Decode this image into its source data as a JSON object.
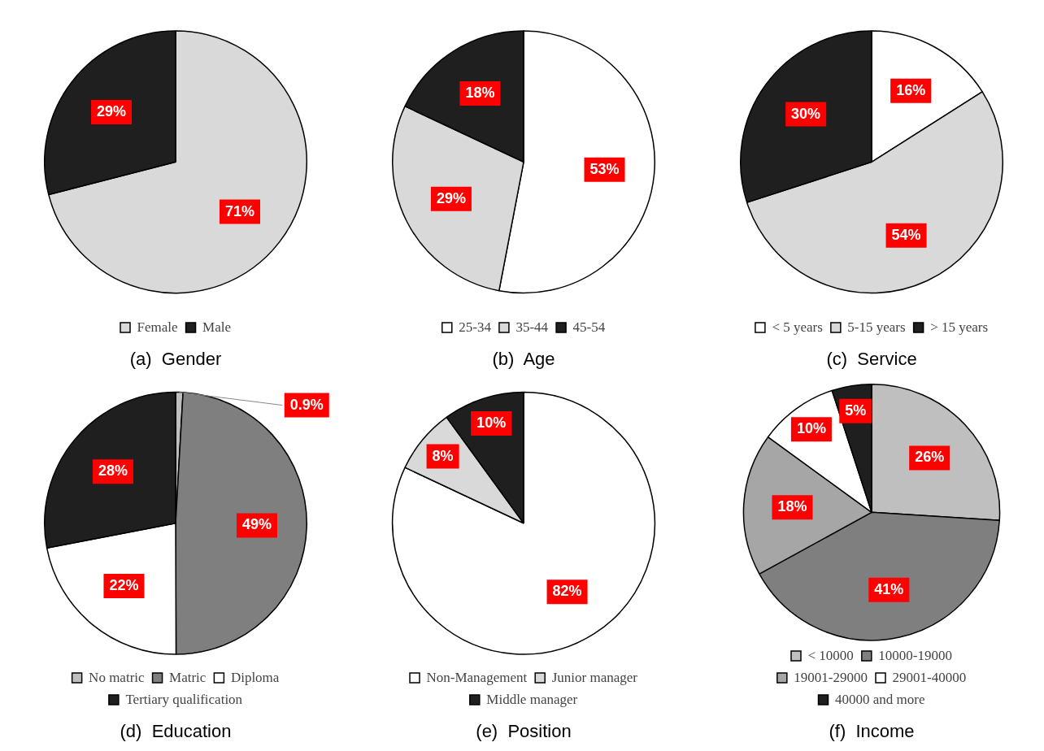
{
  "chart_data": [
    {
      "type": "pie",
      "title": "(a)  Gender",
      "categories": [
        "Female",
        "Male"
      ],
      "values": [
        71,
        29
      ],
      "value_labels": [
        "71%",
        "29%"
      ],
      "colors": [
        "#d9d9d9",
        "#1f1f1f"
      ],
      "legend": "bottom"
    },
    {
      "type": "pie",
      "title": "(b)  Age",
      "categories": [
        "25-34",
        "35-44",
        "45-54"
      ],
      "values": [
        53,
        29,
        18
      ],
      "value_labels": [
        "53%",
        "29%",
        "18%"
      ],
      "colors": [
        "#ffffff",
        "#d9d9d9",
        "#1f1f1f"
      ],
      "legend": "bottom"
    },
    {
      "type": "pie",
      "title": "(c)  Service",
      "categories": [
        "< 5 years",
        "5-15 years",
        "> 15 years"
      ],
      "values": [
        16,
        54,
        30
      ],
      "value_labels": [
        "16%",
        "54%",
        "30%"
      ],
      "colors": [
        "#ffffff",
        "#d9d9d9",
        "#1f1f1f"
      ],
      "legend": "bottom"
    },
    {
      "type": "pie",
      "title": "(d)  Education",
      "categories": [
        "No matric",
        "Matric",
        "Diploma",
        "Tertiary qualification"
      ],
      "values": [
        0.9,
        49,
        22,
        28
      ],
      "value_labels": [
        "0.9%",
        "49%",
        "22%",
        "28%"
      ],
      "colors": [
        "#bfbfbf",
        "#7f7f7f",
        "#ffffff",
        "#1f1f1f"
      ],
      "legend": "bottom"
    },
    {
      "type": "pie",
      "title": "(e)  Position",
      "categories": [
        "Non-Management",
        "Junior manager",
        "Middle manager"
      ],
      "values": [
        82,
        8,
        10
      ],
      "value_labels": [
        "82%",
        "8%",
        "10%"
      ],
      "colors": [
        "#ffffff",
        "#d9d9d9",
        "#1f1f1f"
      ],
      "legend": "bottom"
    },
    {
      "type": "pie",
      "title": "(f)  Income",
      "categories": [
        "< 10000",
        "10000-19000",
        "19001-29000",
        "29001-40000",
        "40000 and more"
      ],
      "values": [
        26,
        41,
        18,
        10,
        5
      ],
      "value_labels": [
        "26%",
        "41%",
        "18%",
        "10%",
        "5%"
      ],
      "colors": [
        "#bfbfbf",
        "#7f7f7f",
        "#a6a6a6",
        "#ffffff",
        "#1f1f1f"
      ],
      "legend": "bottom"
    }
  ]
}
